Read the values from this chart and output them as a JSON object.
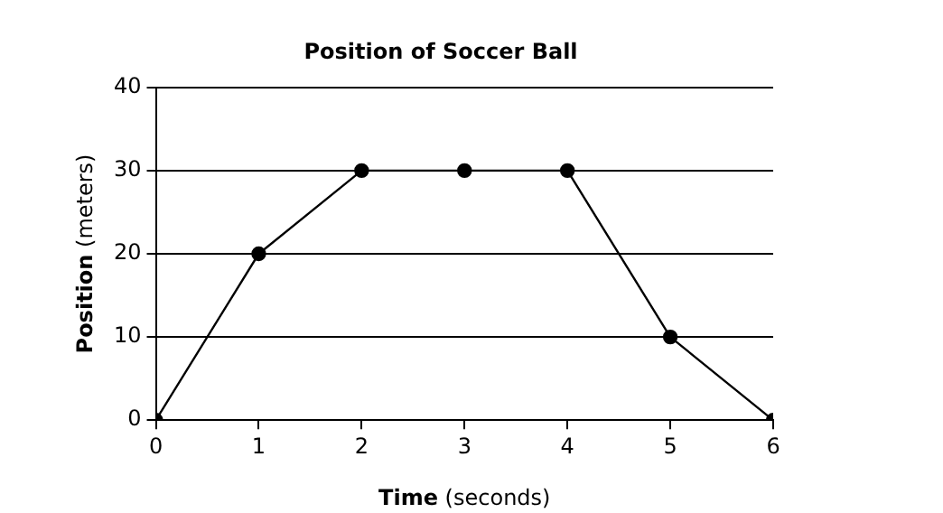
{
  "chart_data": {
    "type": "line",
    "title": "Position of Soccer Ball",
    "xlabel": "Time (seconds)",
    "ylabel": "Position (meters)",
    "x": [
      0,
      1,
      2,
      3,
      4,
      5,
      6
    ],
    "series": [
      {
        "color": "#000000",
        "values": [
          0,
          20,
          30,
          30,
          30,
          10,
          0
        ]
      }
    ],
    "xlim": [
      0,
      6
    ],
    "xticks": [
      0,
      1,
      2,
      3,
      4,
      5,
      6
    ],
    "ylim": [
      0,
      40
    ],
    "yticks": [
      0,
      10,
      20,
      30,
      40
    ],
    "grid": "y",
    "marker": "circle",
    "line_style": "solid",
    "legend": false
  }
}
